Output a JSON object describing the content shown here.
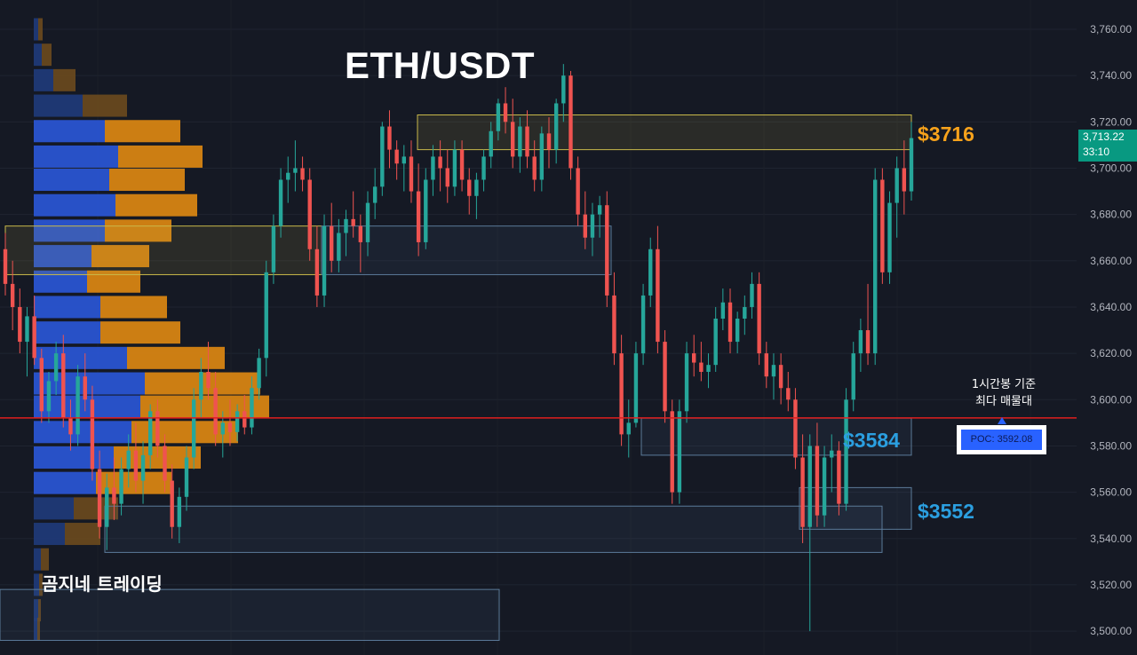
{
  "chart_data": {
    "type": "candlestick",
    "title": "ETH/USDT",
    "author_caption": "곰지네 트레이딩",
    "y_axis": {
      "range": [
        3496,
        3766
      ],
      "ticks": [
        "3,760.00",
        "3,740.00",
        "3,720.00",
        "3,700.00",
        "3,680.00",
        "3,660.00",
        "3,640.00",
        "3,620.00",
        "3,600.00",
        "3,580.00",
        "3,560.00",
        "3,540.00",
        "3,520.00",
        "3,500.00"
      ],
      "tick_values": [
        3760,
        3740,
        3720,
        3700,
        3680,
        3660,
        3640,
        3620,
        3600,
        3580,
        3560,
        3540,
        3520,
        3500
      ]
    },
    "last_price": {
      "value": "3,713.22",
      "countdown": "33:10"
    },
    "poc": {
      "label": "POC: 3592.08",
      "value": 3592.08,
      "annotation_line1": "1시간봉 기준",
      "annotation_line2": "최다 매물대"
    },
    "levels": [
      {
        "label": "$3716",
        "value": 3716,
        "color": "#f5a623"
      },
      {
        "label": "$3584",
        "value": 3584,
        "color": "#2b9fe0"
      },
      {
        "label": "$3552",
        "value": 3552,
        "color": "#2b9fe0"
      }
    ],
    "zones": [
      {
        "from": 3708,
        "to": 3723,
        "kind": "resistance",
        "color": "#c9b94a"
      },
      {
        "from": 3654,
        "to": 3675,
        "kind": "resistance",
        "color": "#c9b94a"
      },
      {
        "from": 3654,
        "to": 3675,
        "kind": "support",
        "color": "#5b7a99"
      },
      {
        "from": 3576,
        "to": 3592,
        "kind": "support",
        "color": "#5b7a99"
      },
      {
        "from": 3544,
        "to": 3562,
        "kind": "support",
        "color": "#5b7a99"
      },
      {
        "from": 3534,
        "to": 3554,
        "kind": "support",
        "color": "#5b7a99"
      },
      {
        "from": 3496,
        "to": 3518,
        "kind": "support",
        "color": "#5b7a99"
      }
    ],
    "volume_profile": {
      "buy_color": "#2962ff",
      "sell_color": "#f7a21b",
      "rows": [
        {
          "price": 3760,
          "buy": 5,
          "sell": 5
        },
        {
          "price": 3749,
          "buy": 9,
          "sell": 11
        },
        {
          "price": 3738,
          "buy": 22,
          "sell": 25
        },
        {
          "price": 3727,
          "buy": 55,
          "sell": 50
        },
        {
          "price": 3716,
          "buy": 80,
          "sell": 85
        },
        {
          "price": 3705,
          "buy": 95,
          "sell": 95
        },
        {
          "price": 3695,
          "buy": 85,
          "sell": 85
        },
        {
          "price": 3684,
          "buy": 92,
          "sell": 92
        },
        {
          "price": 3673,
          "buy": 80,
          "sell": 75
        },
        {
          "price": 3662,
          "buy": 65,
          "sell": 65
        },
        {
          "price": 3651,
          "buy": 60,
          "sell": 60
        },
        {
          "price": 3640,
          "buy": 75,
          "sell": 75
        },
        {
          "price": 3629,
          "buy": 75,
          "sell": 90
        },
        {
          "price": 3618,
          "buy": 105,
          "sell": 110
        },
        {
          "price": 3607,
          "buy": 125,
          "sell": 130
        },
        {
          "price": 3597,
          "buy": 120,
          "sell": 145
        },
        {
          "price": 3586,
          "buy": 110,
          "sell": 120
        },
        {
          "price": 3575,
          "buy": 90,
          "sell": 98
        },
        {
          "price": 3564,
          "buy": 70,
          "sell": 85
        },
        {
          "price": 3553,
          "buy": 45,
          "sell": 50
        },
        {
          "price": 3542,
          "buy": 35,
          "sell": 40
        },
        {
          "price": 3531,
          "buy": 8,
          "sell": 9
        },
        {
          "price": 3520,
          "buy": 6,
          "sell": 4
        },
        {
          "price": 3509,
          "buy": 5,
          "sell": 3
        },
        {
          "price": 3501,
          "buy": 4,
          "sell": 3
        }
      ]
    },
    "candles": [
      [
        3665,
        3672,
        3645,
        3650
      ],
      [
        3650,
        3660,
        3630,
        3640
      ],
      [
        3640,
        3648,
        3620,
        3625
      ],
      [
        3625,
        3640,
        3610,
        3636
      ],
      [
        3636,
        3645,
        3615,
        3618
      ],
      [
        3618,
        3622,
        3590,
        3595
      ],
      [
        3595,
        3612,
        3590,
        3608
      ],
      [
        3608,
        3625,
        3602,
        3620
      ],
      [
        3620,
        3628,
        3588,
        3592
      ],
      [
        3592,
        3600,
        3578,
        3585
      ],
      [
        3585,
        3615,
        3580,
        3610
      ],
      [
        3610,
        3620,
        3595,
        3600
      ],
      [
        3600,
        3606,
        3565,
        3570
      ],
      [
        3570,
        3578,
        3540,
        3545
      ],
      [
        3545,
        3568,
        3535,
        3562
      ],
      [
        3562,
        3575,
        3548,
        3555
      ],
      [
        3555,
        3575,
        3550,
        3570
      ],
      [
        3570,
        3585,
        3562,
        3578
      ],
      [
        3578,
        3590,
        3560,
        3565
      ],
      [
        3565,
        3582,
        3555,
        3576
      ],
      [
        3576,
        3598,
        3570,
        3595
      ],
      [
        3595,
        3600,
        3575,
        3580
      ],
      [
        3580,
        3585,
        3560,
        3565
      ],
      [
        3565,
        3572,
        3540,
        3545
      ],
      [
        3545,
        3562,
        3538,
        3558
      ],
      [
        3558,
        3580,
        3552,
        3575
      ],
      [
        3575,
        3605,
        3570,
        3600
      ],
      [
        3600,
        3618,
        3592,
        3612
      ],
      [
        3612,
        3625,
        3600,
        3605
      ],
      [
        3605,
        3612,
        3580,
        3585
      ],
      [
        3585,
        3595,
        3575,
        3590
      ],
      [
        3590,
        3600,
        3580,
        3586
      ],
      [
        3586,
        3598,
        3582,
        3595
      ],
      [
        3595,
        3602,
        3585,
        3588
      ],
      [
        3588,
        3610,
        3585,
        3605
      ],
      [
        3605,
        3622,
        3600,
        3618
      ],
      [
        3618,
        3660,
        3610,
        3655
      ],
      [
        3655,
        3680,
        3650,
        3675
      ],
      [
        3675,
        3700,
        3670,
        3695
      ],
      [
        3695,
        3705,
        3685,
        3698
      ],
      [
        3698,
        3712,
        3690,
        3700
      ],
      [
        3700,
        3705,
        3690,
        3695
      ],
      [
        3695,
        3700,
        3660,
        3665
      ],
      [
        3665,
        3675,
        3640,
        3645
      ],
      [
        3645,
        3680,
        3640,
        3675
      ],
      [
        3675,
        3685,
        3655,
        3660
      ],
      [
        3660,
        3678,
        3655,
        3672
      ],
      [
        3672,
        3682,
        3662,
        3678
      ],
      [
        3678,
        3690,
        3670,
        3675
      ],
      [
        3675,
        3680,
        3655,
        3668
      ],
      [
        3668,
        3690,
        3662,
        3685
      ],
      [
        3685,
        3700,
        3678,
        3692
      ],
      [
        3692,
        3720,
        3688,
        3718
      ],
      [
        3718,
        3725,
        3700,
        3708
      ],
      [
        3708,
        3712,
        3695,
        3702
      ],
      [
        3702,
        3710,
        3690,
        3705
      ],
      [
        3705,
        3712,
        3685,
        3690
      ],
      [
        3690,
        3702,
        3662,
        3668
      ],
      [
        3668,
        3700,
        3665,
        3695
      ],
      [
        3695,
        3710,
        3688,
        3705
      ],
      [
        3705,
        3712,
        3690,
        3700
      ],
      [
        3700,
        3708,
        3685,
        3692
      ],
      [
        3692,
        3712,
        3688,
        3708
      ],
      [
        3708,
        3712,
        3690,
        3695
      ],
      [
        3695,
        3700,
        3680,
        3688
      ],
      [
        3688,
        3698,
        3678,
        3695
      ],
      [
        3695,
        3708,
        3690,
        3705
      ],
      [
        3705,
        3720,
        3700,
        3716
      ],
      [
        3716,
        3730,
        3712,
        3728
      ],
      [
        3728,
        3735,
        3715,
        3720
      ],
      [
        3720,
        3730,
        3700,
        3705
      ],
      [
        3705,
        3722,
        3698,
        3718
      ],
      [
        3718,
        3725,
        3700,
        3705
      ],
      [
        3705,
        3712,
        3690,
        3695
      ],
      [
        3695,
        3718,
        3690,
        3715
      ],
      [
        3715,
        3722,
        3700,
        3708
      ],
      [
        3708,
        3730,
        3702,
        3728
      ],
      [
        3728,
        3745,
        3720,
        3740
      ],
      [
        3740,
        3742,
        3695,
        3700
      ],
      [
        3700,
        3705,
        3675,
        3680
      ],
      [
        3680,
        3690,
        3665,
        3670
      ],
      [
        3670,
        3685,
        3662,
        3680
      ],
      [
        3680,
        3688,
        3670,
        3684
      ],
      [
        3684,
        3690,
        3640,
        3645
      ],
      [
        3645,
        3655,
        3615,
        3620
      ],
      [
        3620,
        3628,
        3580,
        3585
      ],
      [
        3585,
        3600,
        3575,
        3590
      ],
      [
        3590,
        3625,
        3588,
        3620
      ],
      [
        3620,
        3650,
        3615,
        3645
      ],
      [
        3645,
        3670,
        3640,
        3665
      ],
      [
        3665,
        3675,
        3620,
        3625
      ],
      [
        3625,
        3630,
        3590,
        3595
      ],
      [
        3595,
        3600,
        3555,
        3560
      ],
      [
        3560,
        3600,
        3555,
        3595
      ],
      [
        3595,
        3625,
        3590,
        3620
      ],
      [
        3620,
        3628,
        3610,
        3616
      ],
      [
        3616,
        3625,
        3608,
        3612
      ],
      [
        3612,
        3620,
        3605,
        3615
      ],
      [
        3615,
        3640,
        3612,
        3635
      ],
      [
        3635,
        3648,
        3630,
        3642
      ],
      [
        3642,
        3648,
        3620,
        3625
      ],
      [
        3625,
        3638,
        3620,
        3635
      ],
      [
        3635,
        3645,
        3628,
        3640
      ],
      [
        3640,
        3655,
        3635,
        3650
      ],
      [
        3650,
        3655,
        3615,
        3620
      ],
      [
        3620,
        3625,
        3605,
        3610
      ],
      [
        3610,
        3620,
        3600,
        3615
      ],
      [
        3615,
        3620,
        3598,
        3605
      ],
      [
        3605,
        3612,
        3595,
        3600
      ],
      [
        3600,
        3605,
        3570,
        3575
      ],
      [
        3575,
        3585,
        3538,
        3545
      ],
      [
        3545,
        3585,
        3500,
        3580
      ],
      [
        3580,
        3590,
        3545,
        3550
      ],
      [
        3550,
        3580,
        3545,
        3575
      ],
      [
        3575,
        3585,
        3560,
        3578
      ],
      [
        3578,
        3582,
        3550,
        3555
      ],
      [
        3555,
        3605,
        3552,
        3600
      ],
      [
        3600,
        3625,
        3595,
        3620
      ],
      [
        3620,
        3635,
        3612,
        3630
      ],
      [
        3630,
        3650,
        3615,
        3620
      ],
      [
        3620,
        3700,
        3615,
        3695
      ],
      [
        3695,
        3700,
        3650,
        3655
      ],
      [
        3655,
        3690,
        3650,
        3685
      ],
      [
        3685,
        3705,
        3670,
        3700
      ],
      [
        3700,
        3712,
        3680,
        3690
      ],
      [
        3690,
        3720,
        3686,
        3713
      ]
    ]
  }
}
